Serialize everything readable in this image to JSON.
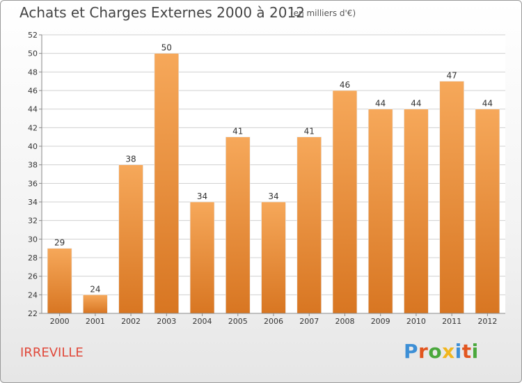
{
  "header": {
    "title": "Achats et Charges Externes 2000 à 2012",
    "subtitle": "(en milliers d'€)"
  },
  "commune": "IRREVILLE",
  "brand": {
    "text": "Proxiti",
    "letter_colors": [
      "#3d8fd6",
      "#e2561f",
      "#4aa83c",
      "#f1b61e",
      "#3d8fd6",
      "#e2561f",
      "#4aa83c"
    ]
  },
  "colors": {
    "bar_light": "#f6a85a",
    "bar_dark": "#d87622",
    "grid": "#d0d0d0",
    "axis": "#888888"
  },
  "chart_data": {
    "type": "bar",
    "title": "Achats et Charges Externes 2000 à 2012",
    "subtitle": "(en milliers d'€)",
    "categories": [
      "2000",
      "2001",
      "2002",
      "2003",
      "2004",
      "2005",
      "2006",
      "2007",
      "2008",
      "2009",
      "2010",
      "2011",
      "2012"
    ],
    "values": [
      29,
      24,
      38,
      50,
      34,
      41,
      34,
      41,
      46,
      44,
      44,
      47,
      44
    ],
    "ylim": [
      22,
      52
    ],
    "yticks": [
      22,
      24,
      26,
      28,
      30,
      32,
      34,
      36,
      38,
      40,
      42,
      44,
      46,
      48,
      50,
      52
    ],
    "grid": true,
    "data_labels": true
  }
}
